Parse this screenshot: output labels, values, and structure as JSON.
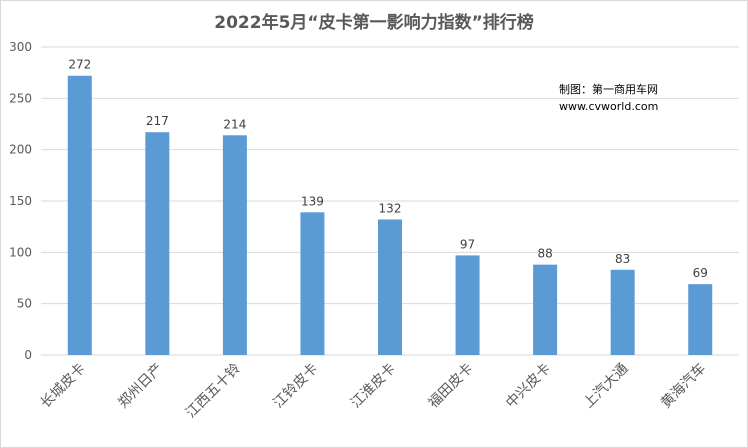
{
  "chart_data": {
    "type": "bar",
    "title": "2022年5月“皮卡第一影响力指数”排行榜",
    "categories": [
      "长城皮卡",
      "郑州日产",
      "江西五十铃",
      "江铃皮卡",
      "江淮皮卡",
      "福田皮卡",
      "中兴皮卡",
      "上汽大通",
      "黄海汽车"
    ],
    "values": [
      272,
      217,
      214,
      139,
      132,
      97,
      88,
      83,
      69
    ],
    "ylim": [
      0,
      300
    ],
    "yticks": [
      0,
      50,
      100,
      150,
      200,
      250,
      300
    ],
    "xlabel": "",
    "ylabel": "",
    "grid": true,
    "bar_color": "#5b9bd5",
    "grid_color": "#d9d9d9"
  },
  "watermark": {
    "line1": "制图：第一商用车网",
    "line2": "www.cvworld.com"
  }
}
